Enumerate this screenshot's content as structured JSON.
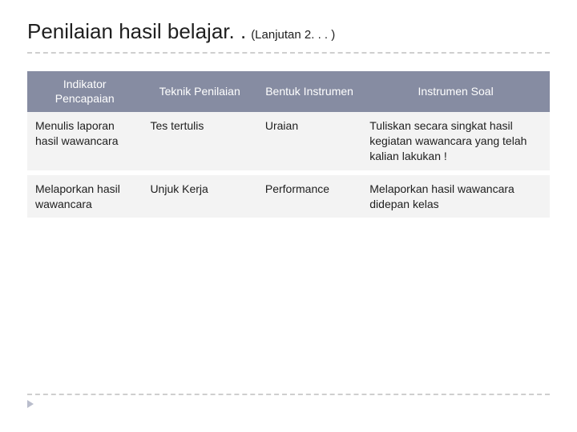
{
  "title": {
    "main": "Penilaian hasil belajar. .",
    "sub": "(Lanjutan 2. . . )"
  },
  "table": {
    "columns": [
      {
        "label": "Indikator Pencapaian",
        "width": "22%",
        "align": "center"
      },
      {
        "label": "Teknik Penilaian",
        "width": "22%",
        "align": "center"
      },
      {
        "label": "Bentuk Instrumen",
        "width": "20%",
        "align": "center"
      },
      {
        "label": "Instrumen Soal",
        "width": "36%",
        "align": "center"
      }
    ],
    "rows": [
      {
        "indikator": "Menulis laporan hasil wawancara",
        "teknik": "Tes tertulis",
        "bentuk": "Uraian",
        "soal": "Tuliskan secara singkat hasil kegiatan wawancara yang telah kalian lakukan !"
      },
      {
        "indikator": "Melaporkan hasil wawancara",
        "teknik": "Unjuk Kerja",
        "bentuk": "Performance",
        "soal": "Melaporkan hasil wawancara didepan kelas"
      }
    ],
    "header_bg": "#868ca2",
    "header_fg": "#ffffff",
    "cell_bg": "#f3f3f3",
    "cell_fg": "#202020",
    "header_fontsize": 14,
    "cell_fontsize": 14,
    "divider_color": "#cfcfcf"
  }
}
